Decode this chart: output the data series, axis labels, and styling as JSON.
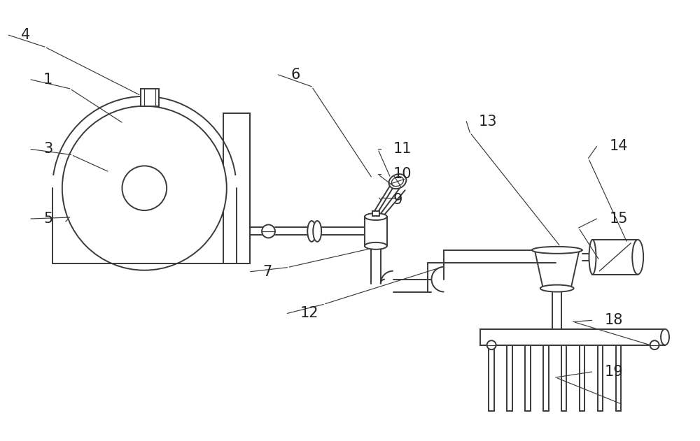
{
  "bg_color": "#ffffff",
  "line_color": "#3a3a3a",
  "lw": 1.4,
  "fig_w": 10.0,
  "fig_h": 6.31,
  "xlim": [
    0,
    10
  ],
  "ylim": [
    0,
    6.31
  ]
}
